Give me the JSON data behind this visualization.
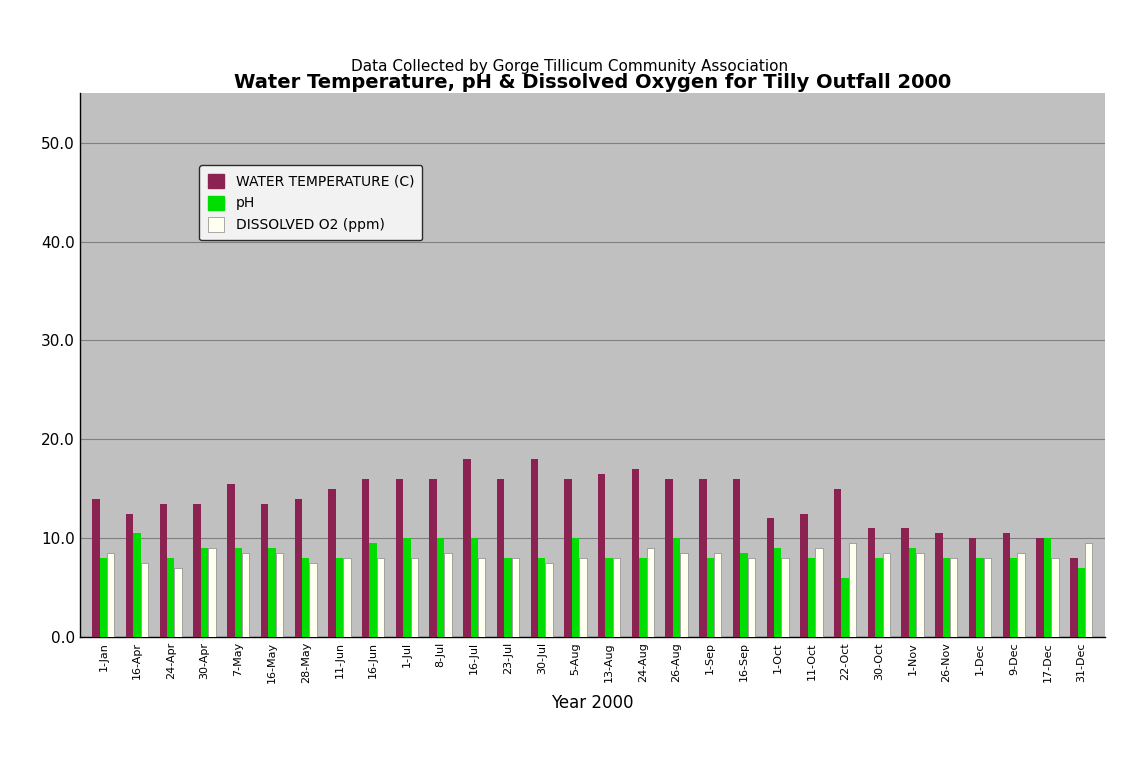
{
  "title": "Water Temperature, pH & Dissolved Oxygen for Tilly Outfall 2000",
  "subtitle": "Data Collected by Gorge Tillicum Community Association",
  "xlabel": "Year 2000",
  "ylabel": "",
  "ylim": [
    0,
    55
  ],
  "yticks": [
    0.0,
    10.0,
    20.0,
    30.0,
    40.0,
    50.0
  ],
  "background_color": "#ffffff",
  "plot_bg_color": "#c0c0c0",
  "categories": [
    "1-Jan",
    "16-Apr",
    "24-Apr",
    "30-Apr",
    "7-May",
    "16-May",
    "28-May",
    "11-Jun",
    "16-Jun",
    "1-Jul",
    "8-Jul",
    "16-Jul",
    "23-Jul",
    "30-Jul",
    "5-Aug",
    "13-Aug",
    "24-Aug",
    "26-Aug",
    "1-Sep",
    "16-Sep",
    "1-Oct",
    "11-Oct",
    "22-Oct",
    "30-Oct",
    "1-Nov",
    "26-Nov",
    "1-Dec",
    "9-Dec",
    "17-Dec",
    "31-Dec"
  ],
  "water_temp": [
    14.0,
    12.5,
    13.5,
    13.5,
    15.5,
    13.5,
    14.0,
    15.0,
    16.0,
    16.0,
    16.0,
    18.0,
    16.0,
    18.0,
    16.0,
    16.5,
    17.0,
    16.0,
    16.0,
    16.0,
    12.0,
    12.5,
    15.0,
    11.0,
    11.0,
    10.5,
    10.0,
    10.5,
    10.0,
    8.0
  ],
  "ph": [
    8.0,
    10.5,
    8.0,
    9.0,
    9.0,
    9.0,
    8.0,
    8.0,
    9.5,
    10.0,
    10.0,
    10.0,
    8.0,
    8.0,
    10.0,
    8.0,
    8.0,
    10.0,
    8.0,
    8.5,
    9.0,
    8.0,
    6.0,
    8.0,
    9.0,
    8.0,
    8.0,
    8.0,
    10.0,
    7.0
  ],
  "dissolved_o2": [
    8.5,
    7.5,
    7.0,
    9.0,
    8.5,
    8.5,
    7.5,
    8.0,
    8.0,
    8.0,
    8.5,
    8.0,
    8.0,
    7.5,
    8.0,
    8.0,
    9.0,
    8.5,
    8.5,
    8.0,
    8.0,
    9.0,
    9.5,
    8.5,
    8.5,
    8.0,
    8.0,
    8.5,
    8.0,
    9.5
  ],
  "color_temp": "#8b2252",
  "color_ph": "#00dd00",
  "color_o2": "#fffff0",
  "legend_labels": [
    "WATER TEMPERATURE (C)",
    "pH",
    "DISSOLVED O2 (ppm)"
  ],
  "grid_color": "#808080",
  "bar_width": 0.22
}
